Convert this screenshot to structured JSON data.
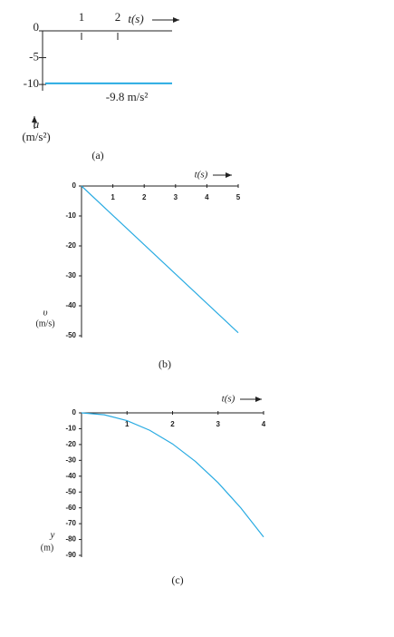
{
  "chart_data": [
    {
      "type": "line",
      "x": [
        0,
        3.5
      ],
      "values": [
        -9.8,
        -9.8
      ],
      "color": "#29abe2",
      "xlim": [
        0,
        3.5
      ],
      "ylim": [
        -11,
        0
      ],
      "xticks": [
        1,
        2
      ],
      "yticks": [
        0,
        -5,
        -10
      ],
      "xlabel": "t(s)",
      "ylabel_symbol": "a",
      "ylabel_unit": "(m/s²)",
      "annotation": "-9.8 m/s²",
      "caption": "(a)"
    },
    {
      "type": "line",
      "x": [
        0,
        5
      ],
      "values": [
        0,
        -49
      ],
      "color": "#29abe2",
      "xlim": [
        0,
        5
      ],
      "ylim": [
        -50,
        0
      ],
      "xticks": [
        1,
        2,
        3,
        4,
        5
      ],
      "yticks": [
        0,
        -10,
        -20,
        -30,
        -40,
        -50
      ],
      "xlabel": "t(s)",
      "ylabel_symbol": "υ",
      "ylabel_unit": "(m/s)",
      "caption": "(b)"
    },
    {
      "type": "line",
      "x": [
        0,
        0.5,
        1,
        1.5,
        2,
        2.5,
        3,
        3.5,
        4
      ],
      "values": [
        0,
        -1.225,
        -4.9,
        -11.025,
        -19.6,
        -30.625,
        -44.1,
        -60.025,
        -78.4
      ],
      "color": "#29abe2",
      "xlim": [
        0,
        4
      ],
      "ylim": [
        -90,
        0
      ],
      "xticks": [
        1,
        2,
        3,
        4
      ],
      "yticks": [
        0,
        -10,
        -20,
        -30,
        -40,
        -50,
        -60,
        -70,
        -80,
        -90
      ],
      "xlabel": "t(s)",
      "ylabel_symbol": "y",
      "ylabel_unit": "(m)",
      "caption": "(c)"
    }
  ]
}
